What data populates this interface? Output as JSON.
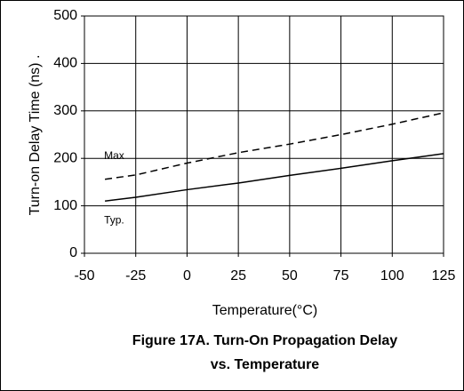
{
  "chart_data": {
    "type": "line",
    "title": [
      "Figure 17A. Turn-On Propagation Delay",
      "vs. Temperature"
    ],
    "x_label": "Temperature(°C)",
    "y_label": "Turn-on Delay Time (ns)  .",
    "x": [
      -40,
      -25,
      0,
      25,
      50,
      75,
      100,
      125
    ],
    "series": [
      {
        "name": "Max",
        "color": "#000000",
        "dash": true,
        "values": [
          156,
          165,
          190,
          212,
          230,
          250,
          272,
          296
        ]
      },
      {
        "name": "Typ.",
        "color": "#000000",
        "dash": false,
        "values": [
          110,
          118,
          134,
          148,
          164,
          179,
          195,
          210
        ]
      }
    ],
    "xlim": [
      -50,
      125
    ],
    "xticks": [
      -50,
      -25,
      0,
      25,
      50,
      75,
      100,
      125
    ],
    "ylim": [
      0,
      500
    ],
    "yticks": [
      0,
      100,
      200,
      300,
      400,
      500
    ],
    "grid": true
  }
}
